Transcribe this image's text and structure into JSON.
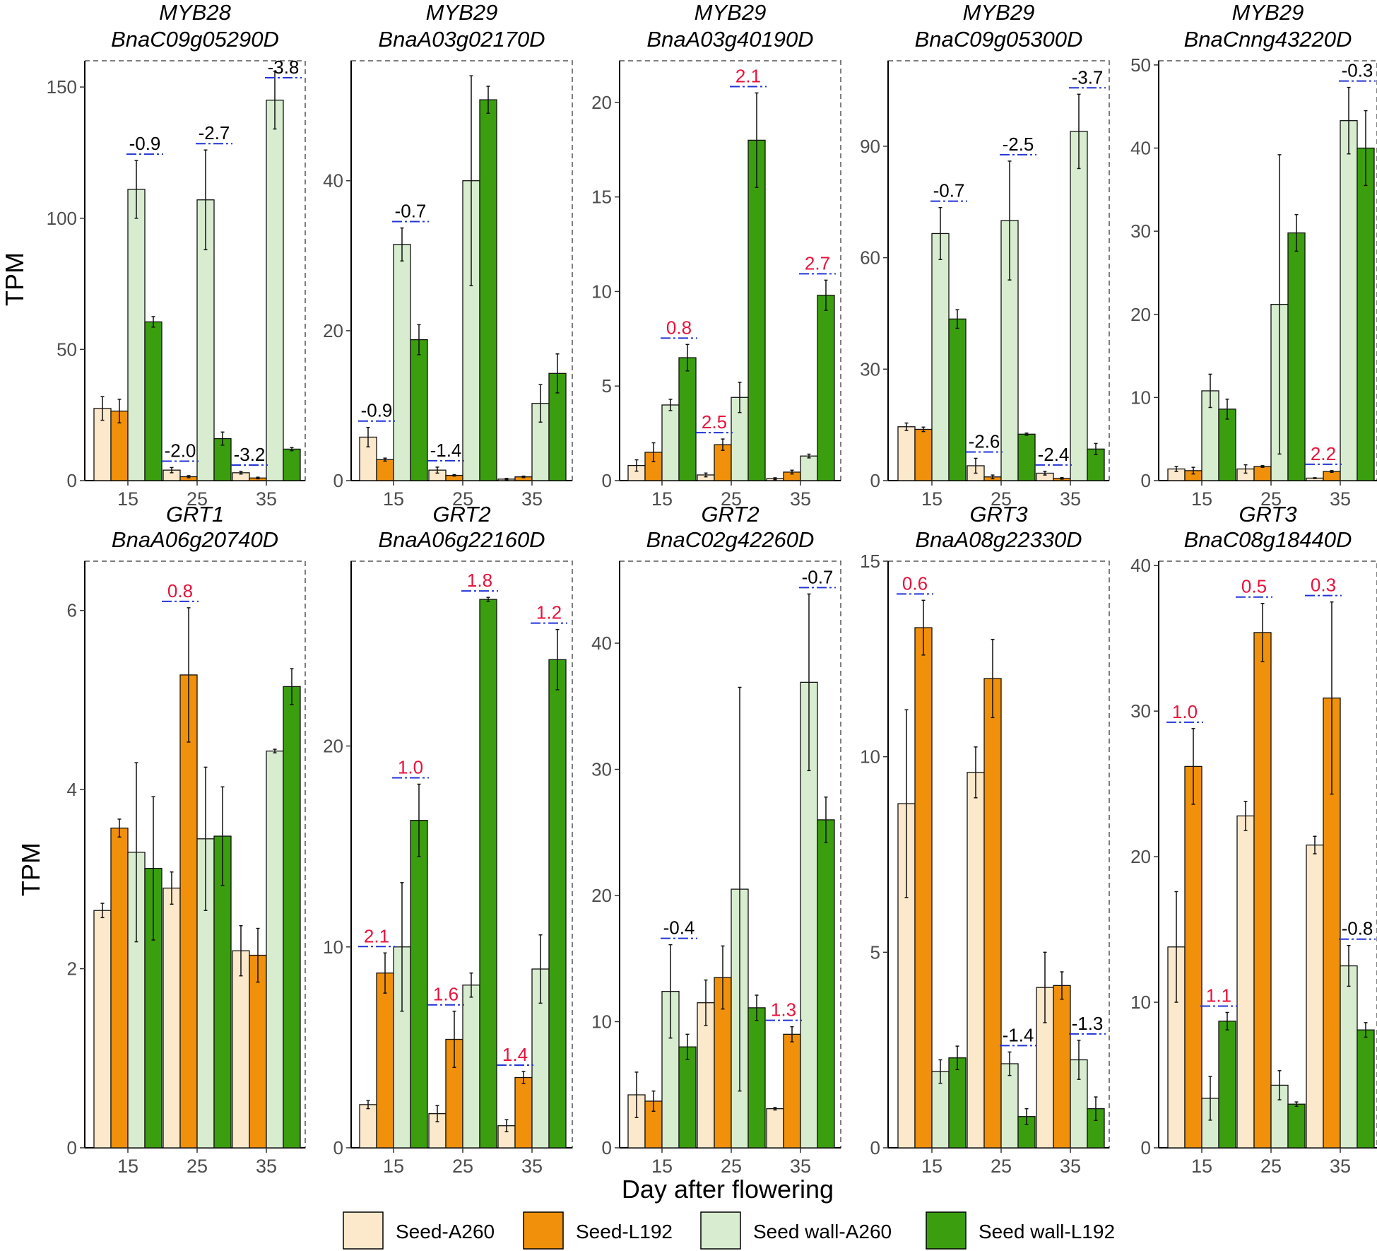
{
  "ylabel": "TPM",
  "xlabel": "Day after flowering",
  "colors": {
    "seed_a260": "#FCE9CC",
    "seed_l192": "#F0900B",
    "wall_a260": "#D8EDD0",
    "wall_l192": "#3A9E0F",
    "positive_label": "#E8133C",
    "negative_label": "#000000",
    "bracket": "#2234D8"
  },
  "legend": [
    {
      "label": "Seed-A260",
      "color": "#FCE9CC"
    },
    {
      "label": "Seed-L192",
      "color": "#F0900B"
    },
    {
      "label": "Seed wall-A260",
      "color": "#D8EDD0"
    },
    {
      "label": "Seed wall-L192",
      "color": "#3A9E0F"
    }
  ],
  "chart_data": [
    {
      "type": "bar",
      "gene": "MYB28",
      "id": "BnaC09g05290D",
      "categories": [
        "15",
        "25",
        "35"
      ],
      "ylim": [
        0,
        160
      ],
      "yticks": [
        0,
        50,
        100,
        150
      ],
      "series": [
        {
          "name": "Seed-A260",
          "values": [
            27.5,
            4.0,
            3.0
          ],
          "errors": [
            4.5,
            1.0,
            0.5
          ]
        },
        {
          "name": "Seed-L192",
          "values": [
            26.5,
            1.5,
            1.0
          ],
          "errors": [
            4.5,
            0.4,
            0.3
          ]
        },
        {
          "name": "Seed wall-A260",
          "values": [
            111,
            107,
            145
          ],
          "errors": [
            11,
            19,
            11
          ]
        },
        {
          "name": "Seed wall-L192",
          "values": [
            60.5,
            16,
            12
          ],
          "errors": [
            2,
            2.5,
            0.6
          ]
        }
      ],
      "annotations": [
        {
          "group": 0,
          "pair": "wall",
          "text": "-0.9"
        },
        {
          "group": 1,
          "pair": "seed",
          "text": "-2.0"
        },
        {
          "group": 1,
          "pair": "wall",
          "text": "-2.7"
        },
        {
          "group": 2,
          "pair": "seed",
          "text": "-3.2"
        },
        {
          "group": 2,
          "pair": "wall",
          "text": "-3.8"
        }
      ]
    },
    {
      "type": "bar",
      "gene": "MYB29",
      "id": "BnaA03g02170D",
      "categories": [
        "15",
        "25",
        "35"
      ],
      "ylim": [
        0,
        56
      ],
      "yticks": [
        0,
        20,
        40
      ],
      "series": [
        {
          "name": "Seed-A260",
          "values": [
            5.8,
            1.4,
            0.2
          ],
          "errors": [
            1.3,
            0.4,
            0.1
          ]
        },
        {
          "name": "Seed-L192",
          "values": [
            2.8,
            0.7,
            0.5
          ],
          "errors": [
            0.2,
            0.1,
            0.1
          ]
        },
        {
          "name": "Seed wall-A260",
          "values": [
            31.5,
            40,
            10.3
          ],
          "errors": [
            2.2,
            14,
            2.5
          ]
        },
        {
          "name": "Seed wall-L192",
          "values": [
            18.8,
            50.8,
            14.3
          ],
          "errors": [
            2,
            1.8,
            2.6
          ]
        }
      ],
      "annotations": [
        {
          "group": 0,
          "pair": "seed",
          "text": "-0.9"
        },
        {
          "group": 0,
          "pair": "wall",
          "text": "-0.7"
        },
        {
          "group": 1,
          "pair": "seed",
          "text": "-1.4"
        }
      ]
    },
    {
      "type": "bar",
      "gene": "MYB29",
      "id": "BnaA03g40190D",
      "categories": [
        "15",
        "25",
        "35"
      ],
      "ylim": [
        0,
        22.2
      ],
      "yticks": [
        0,
        5,
        10,
        15,
        20
      ],
      "series": [
        {
          "name": "Seed-A260",
          "values": [
            0.8,
            0.3,
            0.1
          ],
          "errors": [
            0.3,
            0.1,
            0.05
          ]
        },
        {
          "name": "Seed-L192",
          "values": [
            1.5,
            1.9,
            0.45
          ],
          "errors": [
            0.5,
            0.3,
            0.1
          ]
        },
        {
          "name": "Seed wall-A260",
          "values": [
            4.0,
            4.4,
            1.3
          ],
          "errors": [
            0.3,
            0.8,
            0.1
          ]
        },
        {
          "name": "Seed wall-L192",
          "values": [
            6.5,
            18,
            9.8
          ],
          "errors": [
            0.7,
            2.5,
            0.8
          ]
        }
      ],
      "annotations": [
        {
          "group": 0,
          "pair": "wall",
          "text": "0.8"
        },
        {
          "group": 1,
          "pair": "seed",
          "text": "2.5"
        },
        {
          "group": 1,
          "pair": "wall",
          "text": "2.1"
        },
        {
          "group": 2,
          "pair": "wall",
          "text": "2.7"
        }
      ]
    },
    {
      "type": "bar",
      "gene": "MYB29",
      "id": "BnaC09g05300D",
      "categories": [
        "15",
        "25",
        "35"
      ],
      "ylim": [
        0,
        113
      ],
      "yticks": [
        0,
        30,
        60,
        90
      ],
      "series": [
        {
          "name": "Seed-A260",
          "values": [
            14.5,
            4.0,
            2.0
          ],
          "errors": [
            1.0,
            2.0,
            0.5
          ]
        },
        {
          "name": "Seed-L192",
          "values": [
            13.8,
            1.0,
            0.6
          ],
          "errors": [
            0.6,
            0.5,
            0.2
          ]
        },
        {
          "name": "Seed wall-A260",
          "values": [
            66.5,
            70,
            94
          ],
          "errors": [
            7,
            16,
            10
          ]
        },
        {
          "name": "Seed wall-L192",
          "values": [
            43.5,
            12.5,
            8.5
          ],
          "errors": [
            2.5,
            0.3,
            1.5
          ]
        }
      ],
      "annotations": [
        {
          "group": 0,
          "pair": "wall",
          "text": "-0.7"
        },
        {
          "group": 1,
          "pair": "seed",
          "text": "-2.6"
        },
        {
          "group": 1,
          "pair": "wall",
          "text": "-2.5"
        },
        {
          "group": 2,
          "pair": "seed",
          "text": "-2.4"
        },
        {
          "group": 2,
          "pair": "wall",
          "text": "-3.7"
        }
      ]
    },
    {
      "type": "bar",
      "gene": "MYB29",
      "id": "BnaCnng43220D",
      "categories": [
        "15",
        "25",
        "35"
      ],
      "ylim": [
        0,
        50.5
      ],
      "yticks": [
        0,
        10,
        20,
        30,
        40,
        50
      ],
      "series": [
        {
          "name": "Seed-A260",
          "values": [
            1.4,
            1.4,
            0.3
          ],
          "errors": [
            0.3,
            0.5,
            0.05
          ]
        },
        {
          "name": "Seed-L192",
          "values": [
            1.2,
            1.7,
            1.1
          ],
          "errors": [
            0.4,
            0.1,
            0.1
          ]
        },
        {
          "name": "Seed wall-A260",
          "values": [
            10.8,
            21.2,
            43.3
          ],
          "errors": [
            2,
            18,
            4
          ]
        },
        {
          "name": "Seed wall-L192",
          "values": [
            8.6,
            29.8,
            40
          ],
          "errors": [
            1.2,
            2.2,
            4.5
          ]
        }
      ],
      "annotations": [
        {
          "group": 2,
          "pair": "seed",
          "text": "2.2"
        },
        {
          "group": 2,
          "pair": "wall",
          "text": "-0.3"
        }
      ]
    },
    {
      "type": "bar",
      "gene": "GRT1",
      "id": "BnaA06g20740D",
      "categories": [
        "15",
        "25",
        "35"
      ],
      "ylim": [
        0,
        6.55
      ],
      "yticks": [
        0,
        2,
        4,
        6
      ],
      "series": [
        {
          "name": "Seed-A260",
          "values": [
            2.65,
            2.9,
            2.2
          ],
          "errors": [
            0.08,
            0.18,
            0.28
          ]
        },
        {
          "name": "Seed-L192",
          "values": [
            3.57,
            5.28,
            2.15
          ],
          "errors": [
            0.1,
            0.75,
            0.3
          ]
        },
        {
          "name": "Seed wall-A260",
          "values": [
            3.3,
            3.45,
            4.43
          ],
          "errors": [
            1.0,
            0.8,
            0.02
          ]
        },
        {
          "name": "Seed wall-L192",
          "values": [
            3.12,
            3.48,
            5.15
          ],
          "errors": [
            0.8,
            0.55,
            0.2
          ]
        }
      ],
      "annotations": [
        {
          "group": 1,
          "pair": "seed",
          "text": "0.8"
        }
      ]
    },
    {
      "type": "bar",
      "gene": "GRT2",
      "id": "BnaA06g22160D",
      "categories": [
        "15",
        "25",
        "35"
      ],
      "ylim": [
        0,
        29.2
      ],
      "yticks": [
        0,
        10,
        20
      ],
      "series": [
        {
          "name": "Seed-A260",
          "values": [
            2.15,
            1.7,
            1.1
          ],
          "errors": [
            0.2,
            0.4,
            0.3
          ]
        },
        {
          "name": "Seed-L192",
          "values": [
            8.7,
            5.4,
            3.5
          ],
          "errors": [
            1.0,
            1.4,
            0.3
          ]
        },
        {
          "name": "Seed wall-A260",
          "values": [
            10.0,
            8.1,
            8.9
          ],
          "errors": [
            3.2,
            0.6,
            1.7
          ]
        },
        {
          "name": "Seed wall-L192",
          "values": [
            16.3,
            27.3,
            24.3
          ],
          "errors": [
            1.8,
            0.1,
            1.5
          ]
        }
      ],
      "annotations": [
        {
          "group": 0,
          "pair": "seed",
          "text": "2.1"
        },
        {
          "group": 0,
          "pair": "wall",
          "text": "1.0"
        },
        {
          "group": 1,
          "pair": "seed",
          "text": "1.6"
        },
        {
          "group": 1,
          "pair": "wall",
          "text": "1.8"
        },
        {
          "group": 2,
          "pair": "seed",
          "text": "1.4"
        },
        {
          "group": 2,
          "pair": "wall",
          "text": "1.2"
        }
      ]
    },
    {
      "type": "bar",
      "gene": "GRT2",
      "id": "BnaC02g42260D",
      "categories": [
        "15",
        "25",
        "35"
      ],
      "ylim": [
        0,
        46.5
      ],
      "yticks": [
        0,
        10,
        20,
        30,
        40
      ],
      "series": [
        {
          "name": "Seed-A260",
          "values": [
            4.2,
            11.5,
            3.1
          ],
          "errors": [
            1.8,
            1.8,
            0.1
          ]
        },
        {
          "name": "Seed-L192",
          "values": [
            3.7,
            13.5,
            9.0
          ],
          "errors": [
            0.8,
            2.5,
            0.6
          ]
        },
        {
          "name": "Seed wall-A260",
          "values": [
            12.4,
            20.5,
            36.9
          ],
          "errors": [
            3.7,
            16,
            7
          ]
        },
        {
          "name": "Seed wall-L192",
          "values": [
            8.0,
            11.1,
            26.0
          ],
          "errors": [
            1.0,
            1.0,
            1.8
          ]
        }
      ],
      "annotations": [
        {
          "group": 0,
          "pair": "wall",
          "text": "-0.4"
        },
        {
          "group": 2,
          "pair": "seed",
          "text": "1.3"
        },
        {
          "group": 2,
          "pair": "wall",
          "text": "-0.7"
        }
      ]
    },
    {
      "type": "bar",
      "gene": "GRT3",
      "id": "BnaA08g22330D",
      "categories": [
        "15",
        "25",
        "35"
      ],
      "ylim": [
        0,
        15
      ],
      "yticks": [
        0,
        5,
        10,
        15
      ],
      "series": [
        {
          "name": "Seed-A260",
          "values": [
            8.8,
            9.6,
            4.1
          ],
          "errors": [
            2.4,
            0.65,
            0.9
          ]
        },
        {
          "name": "Seed-L192",
          "values": [
            13.3,
            12.0,
            4.15
          ],
          "errors": [
            0.7,
            1.0,
            0.35
          ]
        },
        {
          "name": "Seed wall-A260",
          "values": [
            1.95,
            2.15,
            2.25
          ],
          "errors": [
            0.3,
            0.3,
            0.5
          ]
        },
        {
          "name": "Seed wall-L192",
          "values": [
            2.3,
            0.8,
            1.0
          ],
          "errors": [
            0.3,
            0.2,
            0.3
          ]
        }
      ],
      "annotations": [
        {
          "group": 0,
          "pair": "seed",
          "text": "0.6"
        },
        {
          "group": 1,
          "pair": "wall",
          "text": "-1.4"
        },
        {
          "group": 2,
          "pair": "wall",
          "text": "-1.3"
        }
      ]
    },
    {
      "type": "bar",
      "gene": "GRT3",
      "id": "BnaC08g18440D",
      "categories": [
        "15",
        "25",
        "35"
      ],
      "ylim": [
        0,
        40.3
      ],
      "yticks": [
        0,
        10,
        20,
        30,
        40
      ],
      "series": [
        {
          "name": "Seed-A260",
          "values": [
            13.8,
            22.8,
            20.8
          ],
          "errors": [
            3.8,
            1.0,
            0.6
          ]
        },
        {
          "name": "Seed-L192",
          "values": [
            26.2,
            35.4,
            30.9
          ],
          "errors": [
            2.6,
            2.0,
            6.6
          ]
        },
        {
          "name": "Seed wall-A260",
          "values": [
            3.4,
            4.3,
            12.5
          ],
          "errors": [
            1.5,
            1.0,
            1.4
          ]
        },
        {
          "name": "Seed wall-L192",
          "values": [
            8.7,
            3.0,
            8.1
          ],
          "errors": [
            0.6,
            0.15,
            0.5
          ]
        }
      ],
      "annotations": [
        {
          "group": 0,
          "pair": "seed",
          "text": "1.0"
        },
        {
          "group": 0,
          "pair": "wall",
          "text": "1.1"
        },
        {
          "group": 1,
          "pair": "seed",
          "text": "0.5"
        },
        {
          "group": 2,
          "pair": "seed",
          "text": "0.3"
        },
        {
          "group": 2,
          "pair": "wall",
          "text": "-0.8"
        }
      ]
    }
  ]
}
